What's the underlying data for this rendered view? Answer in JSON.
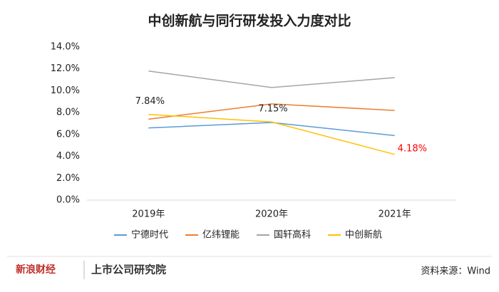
{
  "chart_data": {
    "type": "line",
    "title": "中创新航与同行研发投入力度对比",
    "categories": [
      "2019年",
      "2020年",
      "2021年"
    ],
    "series": [
      {
        "name": "宁德时代",
        "color": "#5b9bd5",
        "values": [
          6.6,
          7.1,
          5.9
        ]
      },
      {
        "name": "亿纬锂能",
        "color": "#ed7d31",
        "values": [
          7.4,
          8.8,
          8.2
        ]
      },
      {
        "name": "国轩高科",
        "color": "#a5a5a5",
        "values": [
          11.8,
          10.3,
          11.2
        ]
      },
      {
        "name": "中创新航",
        "color": "#ffc000",
        "values": [
          7.84,
          7.15,
          4.18
        ],
        "value_labels": [
          "7.84%",
          "7.15%",
          "4.18%"
        ],
        "value_label_colors": [
          "#222222",
          "#222222",
          "#ff0000"
        ]
      }
    ],
    "ylim": [
      0,
      14
    ],
    "yticks": [
      {
        "value": 0,
        "label": "0.0%"
      },
      {
        "value": 2,
        "label": "2.0%"
      },
      {
        "value": 4,
        "label": "4.0%"
      },
      {
        "value": 6,
        "label": "6.0%"
      },
      {
        "value": 8,
        "label": "8.0%"
      },
      {
        "value": 10,
        "label": "10.0%"
      },
      {
        "value": 12,
        "label": "12.0%"
      },
      {
        "value": 14,
        "label": "14.0%"
      }
    ],
    "grid": false,
    "legend": "bottom"
  },
  "footer": {
    "brand": "新浪财经",
    "institute": "上市公司研究院",
    "source": "资料来源：Wind"
  }
}
